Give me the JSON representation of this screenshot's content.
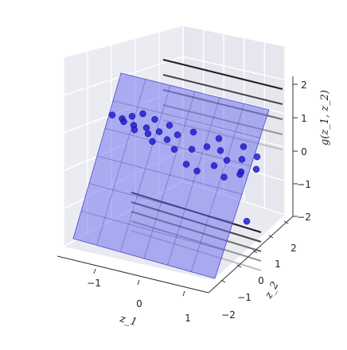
{
  "chart_data": {
    "type": "scatter",
    "title": "",
    "xlabel": "z_1",
    "ylabel": "z_2",
    "zlabel": "g(z_1, z_2)",
    "x_ticks": [
      "−1",
      "0",
      "1"
    ],
    "y_ticks": [
      "−2",
      "−1",
      "0",
      "1",
      "2"
    ],
    "z_ticks": [
      "−2",
      "−1",
      "0",
      "1",
      "2"
    ],
    "xlim": [
      -1.6,
      1.6
    ],
    "ylim": [
      -2.5,
      2.5
    ],
    "zlim": [
      -2.3,
      2.3
    ],
    "grid": true,
    "plane": {
      "description": "g = 0.9·z1 + 0.0·z2",
      "z1_range": [
        -1.3,
        1.3
      ],
      "z2_range": [
        -2.2,
        2.2
      ]
    },
    "points": [
      {
        "x": -1.2,
        "y": 0.1,
        "z": 1.2
      },
      {
        "x": -1.05,
        "y": 0.3,
        "z": 1.1
      },
      {
        "x": -0.95,
        "y": -0.2,
        "z": 1.05
      },
      {
        "x": -0.9,
        "y": 0.5,
        "z": 1.2
      },
      {
        "x": -0.8,
        "y": 0.0,
        "z": 0.95
      },
      {
        "x": -0.75,
        "y": 0.8,
        "z": 1.3
      },
      {
        "x": -0.7,
        "y": -0.6,
        "z": 0.85
      },
      {
        "x": -0.6,
        "y": 0.2,
        "z": 0.9
      },
      {
        "x": -0.55,
        "y": 0.9,
        "z": 1.15
      },
      {
        "x": -0.5,
        "y": -0.3,
        "z": 0.75
      },
      {
        "x": -0.4,
        "y": 0.4,
        "z": 0.8
      },
      {
        "x": -0.35,
        "y": -0.8,
        "z": 0.55
      },
      {
        "x": -0.3,
        "y": 1.0,
        "z": 1.0
      },
      {
        "x": -0.2,
        "y": 0.0,
        "z": 0.6
      },
      {
        "x": -0.1,
        "y": 0.6,
        "z": 0.75
      },
      {
        "x": 0.0,
        "y": -0.5,
        "z": 0.35
      },
      {
        "x": 0.1,
        "y": 1.2,
        "z": 0.85
      },
      {
        "x": 0.2,
        "y": 0.3,
        "z": 0.35
      },
      {
        "x": 0.3,
        "y": -1.1,
        "z": -0.05
      },
      {
        "x": 0.4,
        "y": 0.8,
        "z": 0.45
      },
      {
        "x": 0.5,
        "y": 1.6,
        "z": 0.7
      },
      {
        "x": 0.6,
        "y": 1.1,
        "z": 0.35
      },
      {
        "x": 0.7,
        "y": -0.4,
        "z": -0.05
      },
      {
        "x": 0.8,
        "y": 0.5,
        "z": 0.1
      },
      {
        "x": 0.9,
        "y": 1.9,
        "z": 0.5
      },
      {
        "x": 1.0,
        "y": 1.0,
        "z": 0.15
      },
      {
        "x": 1.1,
        "y": 0.2,
        "z": -0.2
      },
      {
        "x": 1.2,
        "y": 1.5,
        "z": 0.25
      },
      {
        "x": 0.95,
        "y": -0.9,
        "z": -0.35
      },
      {
        "x": 1.3,
        "y": 0.7,
        "z": -0.1
      },
      {
        "x": 0.55,
        "y": -1.5,
        "z": -0.2
      },
      {
        "x": 1.15,
        "y": -0.3,
        "z": -0.25
      },
      {
        "x": 1.4,
        "y": -1.2,
        "z": -1.7
      }
    ],
    "colors": {
      "pane": "#ebebf2",
      "grid": "#ffffff",
      "plane": "#6a6af0",
      "points": "#1f1fd4"
    }
  }
}
